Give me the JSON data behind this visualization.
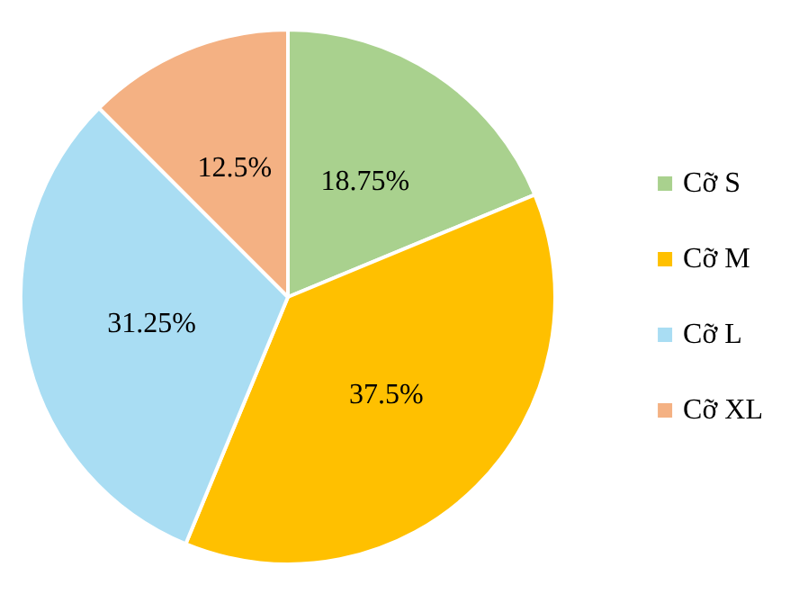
{
  "chart_data": {
    "type": "pie",
    "categories": [
      "Cỡ S",
      "Cỡ M",
      "Cỡ L",
      "Cỡ XL"
    ],
    "values": [
      18.75,
      37.5,
      31.25,
      12.5
    ],
    "colors": [
      "#a9d18e",
      "#ffc000",
      "#a9ddf3",
      "#f4b183"
    ],
    "value_labels": [
      "18.75%",
      "37.5%",
      "31.25%",
      "12.5%"
    ],
    "legend": "right"
  }
}
